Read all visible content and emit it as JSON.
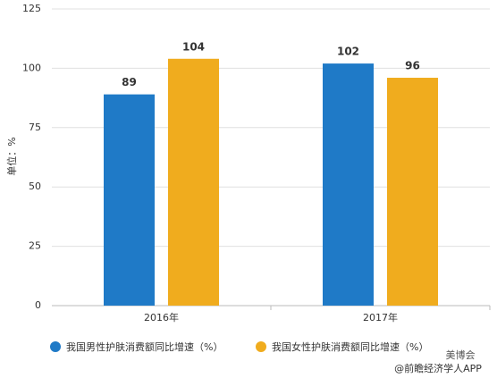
{
  "chart_data": {
    "type": "bar",
    "y_label": "单位：%",
    "categories": [
      "2016年",
      "2017年"
    ],
    "series": [
      {
        "name": "我国男性护肤消费额同比增速（%）",
        "color": "#1f7ac7",
        "values": [
          89,
          102
        ]
      },
      {
        "name": "我国女性护肤消费额同比增速（%）",
        "color": "#f0ac1e",
        "values": [
          104,
          96
        ]
      }
    ],
    "ylim": [
      0,
      125
    ],
    "yticks": [
      0,
      25,
      50,
      75,
      100,
      125
    ],
    "grid": true,
    "legend": "bottom",
    "watermark": [
      "美博会",
      "@前瞻经济学人APP"
    ]
  }
}
